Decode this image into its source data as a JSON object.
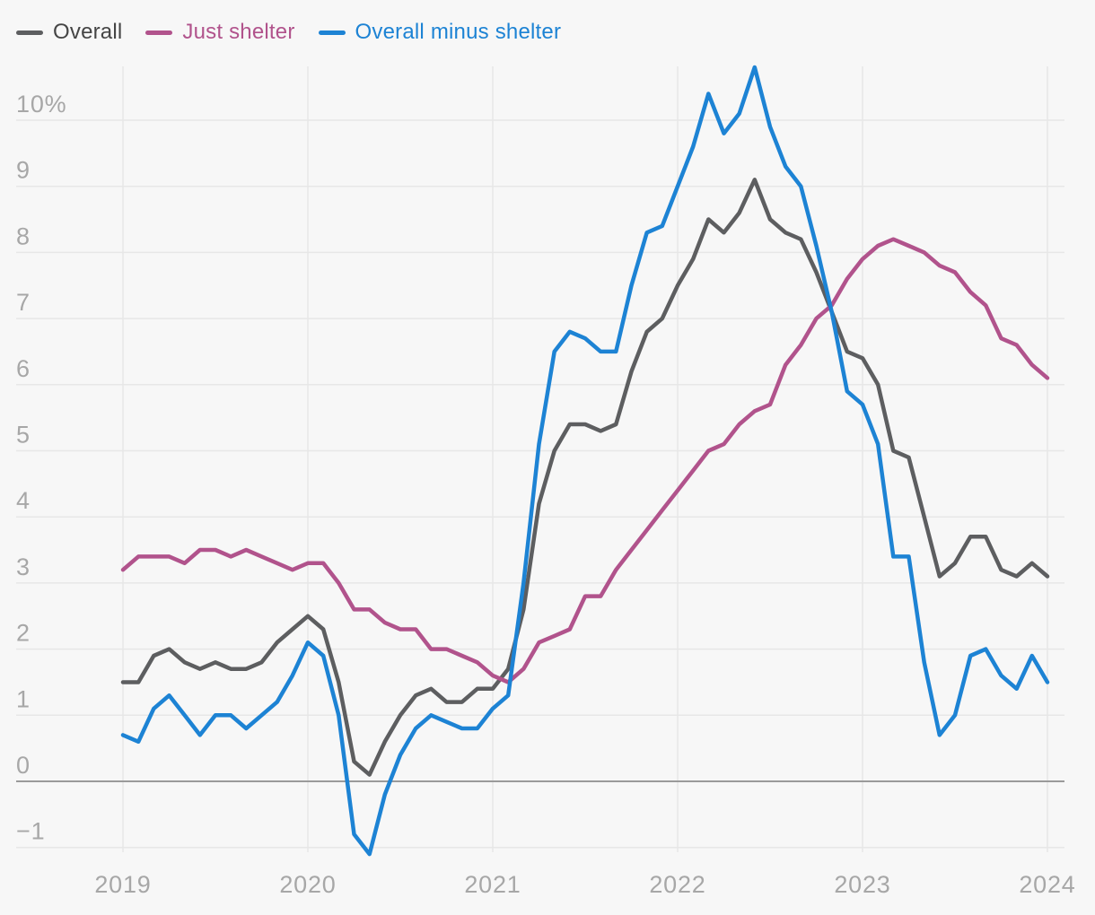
{
  "colors": {
    "background": "#f7f7f7",
    "gridline": "#e7e7e7",
    "zero_line": "#9a9a9a",
    "axis_label": "#a7a7a7",
    "overall_line": "#5d5e60",
    "shelter_line": "#b1538c",
    "minus_shelter_line": "#1d83d4"
  },
  "legend": {
    "items": [
      "Overall",
      "Just shelter",
      "Overall minus shelter"
    ]
  },
  "chart_data": {
    "type": "line",
    "x_start": "2019-01",
    "x_frequency": "monthly",
    "x_tick_labels": [
      "2019",
      "2020",
      "2021",
      "2022",
      "2023",
      "2024"
    ],
    "y_ticks": [
      {
        "value": 10,
        "label": "10%"
      },
      {
        "value": 9,
        "label": "9"
      },
      {
        "value": 8,
        "label": "8"
      },
      {
        "value": 7,
        "label": "7"
      },
      {
        "value": 6,
        "label": "6"
      },
      {
        "value": 5,
        "label": "5"
      },
      {
        "value": 4,
        "label": "4"
      },
      {
        "value": 3,
        "label": "3"
      },
      {
        "value": 2,
        "label": "2"
      },
      {
        "value": 1,
        "label": "1"
      },
      {
        "value": 0,
        "label": "0"
      },
      {
        "value": -1,
        "label": "−1"
      }
    ],
    "ylim": [
      -1.15,
      10.85
    ],
    "grid": true,
    "legend_position": "top-left",
    "unit": "percent, year-over-year",
    "series": [
      {
        "name": "Overall",
        "color": "#5d5e60",
        "label_color": "#454545",
        "values": [
          1.5,
          1.5,
          1.9,
          2.0,
          1.8,
          1.7,
          1.8,
          1.7,
          1.7,
          1.8,
          2.1,
          2.3,
          2.5,
          2.3,
          1.5,
          0.3,
          0.1,
          0.6,
          1.0,
          1.3,
          1.4,
          1.2,
          1.2,
          1.4,
          1.4,
          1.7,
          2.6,
          4.2,
          5.0,
          5.4,
          5.4,
          5.3,
          5.4,
          6.2,
          6.8,
          7.0,
          7.5,
          7.9,
          8.5,
          8.3,
          8.6,
          9.1,
          8.5,
          8.3,
          8.2,
          7.7,
          7.1,
          6.5,
          6.4,
          6.0,
          5.0,
          4.9,
          4.0,
          3.1,
          3.3,
          3.7,
          3.7,
          3.2,
          3.1,
          3.3,
          3.1
        ]
      },
      {
        "name": "Just shelter",
        "color": "#b1538c",
        "label_color": "#b1538c",
        "values": [
          3.2,
          3.4,
          3.4,
          3.4,
          3.3,
          3.5,
          3.5,
          3.4,
          3.5,
          3.4,
          3.3,
          3.2,
          3.3,
          3.3,
          3.0,
          2.6,
          2.6,
          2.4,
          2.3,
          2.3,
          2.0,
          2.0,
          1.9,
          1.8,
          1.6,
          1.5,
          1.7,
          2.1,
          2.2,
          2.3,
          2.8,
          2.8,
          3.2,
          3.5,
          3.8,
          4.1,
          4.4,
          4.7,
          5.0,
          5.1,
          5.4,
          5.6,
          5.7,
          6.3,
          6.6,
          7.0,
          7.2,
          7.6,
          7.9,
          8.1,
          8.2,
          8.1,
          8.0,
          7.8,
          7.7,
          7.4,
          7.2,
          6.7,
          6.6,
          6.3,
          6.1
        ]
      },
      {
        "name": "Overall minus shelter",
        "color": "#1d83d4",
        "label_color": "#1d83d4",
        "values": [
          0.7,
          0.6,
          1.1,
          1.3,
          1.0,
          0.7,
          1.0,
          1.0,
          0.8,
          1.0,
          1.2,
          1.6,
          2.1,
          1.9,
          1.0,
          -0.8,
          -1.1,
          -0.2,
          0.4,
          0.8,
          1.0,
          0.9,
          0.8,
          0.8,
          1.1,
          1.3,
          3.0,
          5.1,
          6.5,
          6.8,
          6.7,
          6.5,
          6.5,
          7.5,
          8.3,
          8.4,
          9.0,
          9.6,
          10.4,
          9.8,
          10.1,
          10.8,
          9.9,
          9.3,
          9.0,
          8.1,
          7.1,
          5.9,
          5.7,
          5.1,
          3.4,
          3.4,
          1.8,
          0.7,
          1.0,
          1.9,
          2.0,
          1.6,
          1.4,
          1.9,
          1.5
        ]
      }
    ]
  }
}
